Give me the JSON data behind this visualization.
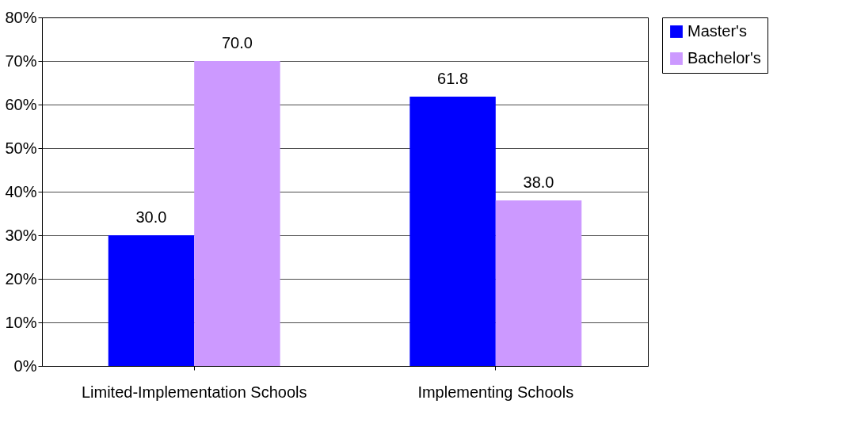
{
  "chart_data": {
    "type": "bar",
    "categories": [
      "Limited-Implementation Schools",
      "Implementing Schools"
    ],
    "series": [
      {
        "name": "Master's",
        "color": "#0000ff",
        "values": [
          30.0,
          61.8
        ],
        "value_labels": [
          "30.0",
          "61.8"
        ]
      },
      {
        "name": "Bachelor's",
        "color": "#cc99ff",
        "values": [
          70.0,
          38.0
        ],
        "value_labels": [
          "70.0",
          "38.0"
        ]
      }
    ],
    "ylim": [
      0,
      80
    ],
    "yticks": [
      {
        "value": 0,
        "label": "0%"
      },
      {
        "value": 10,
        "label": "10%"
      },
      {
        "value": 20,
        "label": "20%"
      },
      {
        "value": 30,
        "label": "30%"
      },
      {
        "value": 40,
        "label": "40%"
      },
      {
        "value": 50,
        "label": "50%"
      },
      {
        "value": 60,
        "label": "60%"
      },
      {
        "value": 70,
        "label": "70%"
      },
      {
        "value": 80,
        "label": "80%"
      }
    ],
    "grid": "y",
    "legend": "right"
  }
}
